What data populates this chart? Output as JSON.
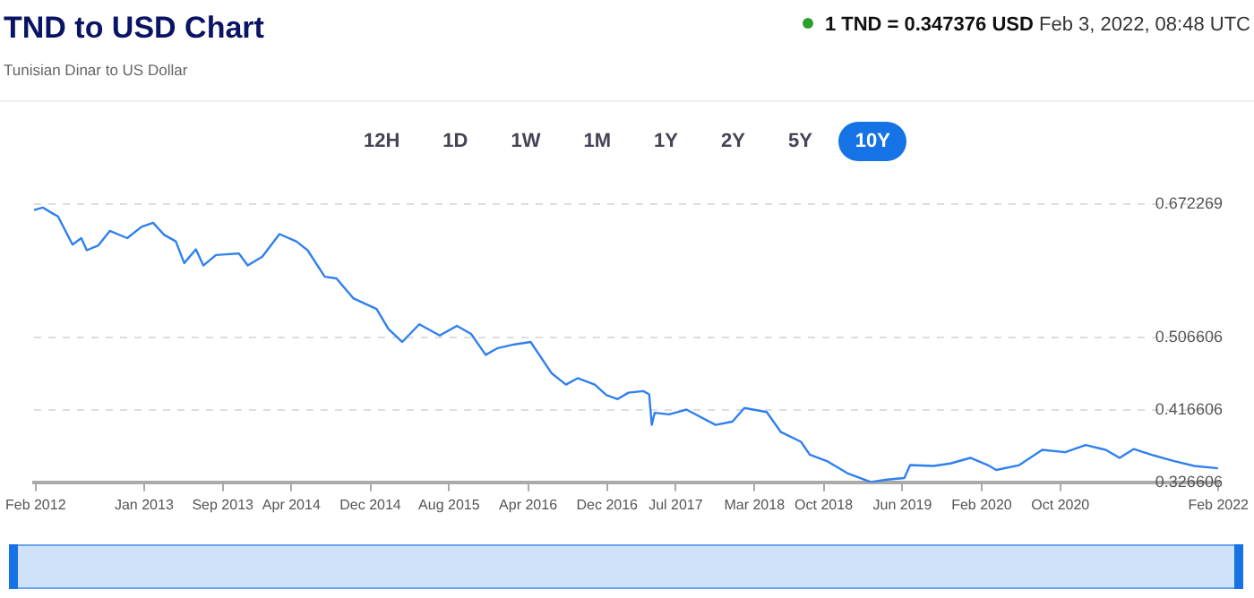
{
  "chart_data": {
    "type": "line",
    "title": "TND to USD Chart",
    "subtitle": "Tunisian Dinar to US Dollar",
    "annotations": [
      "1 TND = 0.347376 USD",
      "Feb 3, 2022, 08:48 UTC",
      "12H",
      "1D",
      "1W",
      "1M",
      "1Y",
      "2Y",
      "5Y",
      "10Y"
    ],
    "x": [
      "2012-01-27",
      "2012-02-23",
      "2012-03-23",
      "2012-04-10",
      "2012-05-25",
      "2012-06-21",
      "2012-07-08",
      "2012-08-13",
      "2012-09-17",
      "2012-11-10",
      "2012-12-24",
      "2013-01-29",
      "2013-03-04",
      "2013-04-09",
      "2013-05-05",
      "2013-06-10",
      "2013-07-03",
      "2013-08-11",
      "2013-10-21",
      "2013-11-17",
      "2014-01-01",
      "2014-02-23",
      "2014-04-16",
      "2014-05-21",
      "2014-07-13",
      "2014-08-18",
      "2014-10-10",
      "2014-12-20",
      "2015-01-26",
      "2015-03-09",
      "2015-05-01",
      "2015-07-03",
      "2015-08-25",
      "2015-10-08",
      "2015-11-22",
      "2015-12-27",
      "2016-02-19",
      "2016-04-09",
      "2016-06-13",
      "2016-07-27",
      "2016-09-01",
      "2016-10-24",
      "2016-11-29",
      "2017-01-03",
      "2017-02-05",
      "2017-03-23",
      "2017-04-10",
      "2017-04-18",
      "2017-04-27",
      "2017-06-11",
      "2017-08-03",
      "2017-11-01",
      "2017-12-23",
      "2018-01-29",
      "2018-04-08",
      "2018-05-22",
      "2018-07-23",
      "2018-08-19",
      "2018-10-11",
      "2018-12-13",
      "2019-02-23",
      "2019-04-15",
      "2019-06-07",
      "2019-06-25",
      "2019-09-05",
      "2019-10-27",
      "2019-12-28",
      "2020-02-20",
      "2020-03-17",
      "2020-05-27",
      "2020-08-06",
      "2020-10-16",
      "2020-12-18",
      "2021-02-18",
      "2021-04-02",
      "2021-05-16",
      "2021-07-17",
      "2021-09-18",
      "2021-11-19",
      "2022-01-31"
    ],
    "series": [
      {
        "color": "#2f80ed",
        "values": [
          0.665,
          0.668,
          0.661,
          0.657,
          0.622,
          0.63,
          0.615,
          0.621,
          0.639,
          0.63,
          0.644,
          0.649,
          0.634,
          0.626,
          0.599,
          0.616,
          0.596,
          0.609,
          0.611,
          0.596,
          0.607,
          0.635,
          0.626,
          0.615,
          0.582,
          0.58,
          0.555,
          0.542,
          0.517,
          0.501,
          0.523,
          0.509,
          0.521,
          0.511,
          0.485,
          0.493,
          0.498,
          0.501,
          0.462,
          0.448,
          0.456,
          0.448,
          0.435,
          0.43,
          0.438,
          0.44,
          0.436,
          0.398,
          0.413,
          0.411,
          0.417,
          0.398,
          0.402,
          0.419,
          0.414,
          0.389,
          0.377,
          0.361,
          0.353,
          0.338,
          0.327,
          0.33,
          0.332,
          0.348,
          0.347,
          0.35,
          0.357,
          0.348,
          0.342,
          0.348,
          0.367,
          0.364,
          0.373,
          0.367,
          0.357,
          0.368,
          0.36,
          0.353,
          0.347,
          0.344
        ]
      }
    ],
    "xlim": [
      "2012-01-27",
      "2022-02-03"
    ],
    "xticks": [
      {
        "value": "2012-02",
        "label": "Feb 2012"
      },
      {
        "value": "2013-01",
        "label": "Jan 2013"
      },
      {
        "value": "2013-09",
        "label": "Sep 2013"
      },
      {
        "value": "2014-04",
        "label": "Apr 2014"
      },
      {
        "value": "2014-12",
        "label": "Dec 2014"
      },
      {
        "value": "2015-08",
        "label": "Aug 2015"
      },
      {
        "value": "2016-04",
        "label": "Apr 2016"
      },
      {
        "value": "2016-12",
        "label": "Dec 2016"
      },
      {
        "value": "2017-07",
        "label": "Jul 2017"
      },
      {
        "value": "2018-03",
        "label": "Mar 2018"
      },
      {
        "value": "2018-10",
        "label": "Oct 2018"
      },
      {
        "value": "2019-06",
        "label": "Jun 2019"
      },
      {
        "value": "2020-02",
        "label": "Feb 2020"
      },
      {
        "value": "2020-10",
        "label": "Oct 2020"
      },
      {
        "value": "2022-02",
        "label": "Feb 2022"
      }
    ],
    "ylim": [
      0.326606,
      0.672269
    ],
    "yticks": [
      0.326606,
      0.416606,
      0.506606,
      0.672269
    ],
    "grid": "y",
    "legend": false,
    "marker": "none",
    "line_style": "solid"
  }
}
